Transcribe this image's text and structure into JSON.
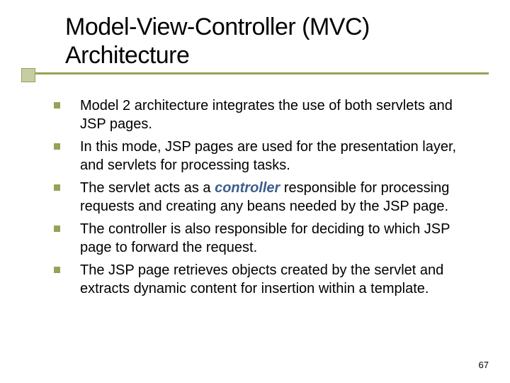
{
  "title": "Model-View-Controller (MVC) Architecture",
  "bullets": [
    {
      "pre": "Model 2 architecture integrates the use of both servlets and JSP pages.",
      "em": "",
      "post": ""
    },
    {
      "pre": "In this mode, JSP pages are used for the presentation layer, and servlets for processing tasks.",
      "em": "",
      "post": ""
    },
    {
      "pre": "The servlet acts as a ",
      "em": "controller",
      "post": " responsible for processing requests and creating any beans needed by the JSP page."
    },
    {
      "pre": "The controller is also responsible for deciding to which JSP page to forward the request.",
      "em": "",
      "post": ""
    },
    {
      "pre": "The JSP page retrieves objects created by the servlet and extracts dynamic content for insertion within a template.",
      "em": "",
      "post": ""
    }
  ],
  "page_number": "67",
  "colors": {
    "accent": "#9aa05a",
    "accent_light": "#c7cda2",
    "emphasis": "#3b5e8c",
    "text": "#000000",
    "background": "#ffffff"
  },
  "typography": {
    "title_fontsize": 34,
    "body_fontsize": 20,
    "pagenum_fontsize": 13
  }
}
